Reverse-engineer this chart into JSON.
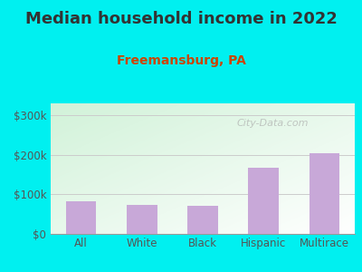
{
  "title": "Median household income in 2022",
  "subtitle": "Freemansburg, PA",
  "categories": [
    "All",
    "White",
    "Black",
    "Hispanic",
    "Multirace"
  ],
  "values": [
    82000,
    73000,
    72000,
    168000,
    205000
  ],
  "bar_color": "#c8a8d8",
  "background_outer": "#00f0f0",
  "background_plot_top_left": "#d0edd8",
  "background_plot_bottom_right": "#f8fff8",
  "title_color": "#333333",
  "subtitle_color": "#cc4400",
  "tick_label_color": "#555555",
  "ylim": [
    0,
    330000
  ],
  "yticks": [
    0,
    100000,
    200000,
    300000
  ],
  "ytick_labels": [
    "$0",
    "$100k",
    "$200k",
    "$300k"
  ],
  "watermark": "City-Data.com",
  "title_fontsize": 13,
  "subtitle_fontsize": 10
}
